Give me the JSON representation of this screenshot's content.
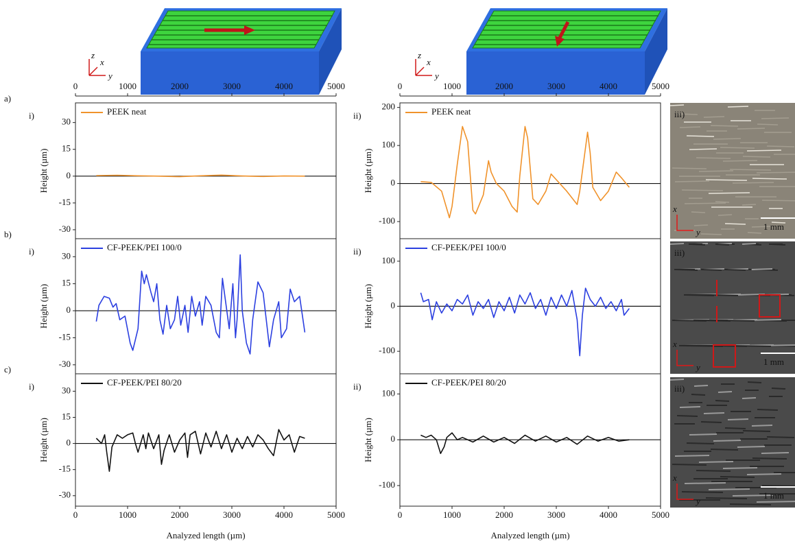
{
  "chart_data": [
    {
      "type": "line",
      "panel_label": "a)",
      "sub_label": "i)",
      "ylabel": "Height (µm)",
      "xaxis": "top",
      "xlim": [
        0,
        5000
      ],
      "xticks": [
        0,
        1000,
        2000,
        3000,
        4000,
        5000
      ],
      "ylim": [
        -35,
        41
      ],
      "yticks": [
        -30,
        -15,
        0,
        15,
        30
      ],
      "zero_line": true,
      "legend": "upper left",
      "series": [
        {
          "name": "PEEK neat",
          "color": "#f0922a",
          "x": [
            400,
            800,
            1200,
            1600,
            2000,
            2400,
            2800,
            3200,
            3600,
            4000,
            4400
          ],
          "values": [
            0.3,
            0.5,
            0.2,
            0,
            -0.3,
            0.2,
            0.6,
            0.1,
            -0.2,
            0.1,
            0
          ]
        }
      ]
    },
    {
      "type": "line",
      "sub_label": "ii)",
      "ylabel": "Height (µm)",
      "xaxis": "top",
      "xlim": [
        0,
        5000
      ],
      "xticks": [
        0,
        1000,
        2000,
        3000,
        4000,
        5000
      ],
      "ylim": [
        -145,
        212
      ],
      "yticks": [
        -100,
        0,
        100,
        200
      ],
      "zero_line": true,
      "legend": "upper left",
      "series": [
        {
          "name": "PEEK neat",
          "color": "#f0922a",
          "x": [
            400,
            600,
            800,
            950,
            1000,
            1100,
            1200,
            1300,
            1400,
            1450,
            1600,
            1700,
            1750,
            1850,
            2000,
            2150,
            2250,
            2300,
            2400,
            2450,
            2550,
            2650,
            2800,
            2900,
            3000,
            3200,
            3400,
            3450,
            3600,
            3650,
            3700,
            3850,
            4000,
            4150,
            4250,
            4400
          ],
          "values": [
            5,
            3,
            -20,
            -90,
            -60,
            50,
            150,
            110,
            -70,
            -80,
            -30,
            60,
            30,
            0,
            -20,
            -60,
            -75,
            20,
            150,
            120,
            -40,
            -55,
            -20,
            25,
            10,
            -20,
            -55,
            -20,
            135,
            80,
            -10,
            -45,
            -20,
            30,
            15,
            -10
          ]
        }
      ]
    },
    {
      "type": "line",
      "panel_label": "b)",
      "sub_label": "i)",
      "ylabel": "Height (µm)",
      "xlim": [
        0,
        5000
      ],
      "ylim": [
        -35,
        40
      ],
      "yticks": [
        -30,
        -15,
        0,
        15,
        30
      ],
      "zero_line": true,
      "legend": "upper left",
      "series": [
        {
          "name": "CF-PEEK/PEI 100/0",
          "color": "#2b3fe0",
          "x": [
            400,
            450,
            550,
            650,
            720,
            780,
            850,
            950,
            1050,
            1100,
            1200,
            1270,
            1320,
            1360,
            1450,
            1500,
            1560,
            1620,
            1680,
            1750,
            1820,
            1900,
            1960,
            2020,
            2100,
            2160,
            2230,
            2300,
            2380,
            2430,
            2500,
            2600,
            2700,
            2760,
            2820,
            2880,
            2950,
            3020,
            3070,
            3100,
            3160,
            3200,
            3280,
            3350,
            3400,
            3500,
            3600,
            3680,
            3720,
            3800,
            3900,
            3950,
            4050,
            4120,
            4200,
            4300,
            4400
          ],
          "values": [
            -6,
            3,
            8,
            7,
            2,
            4,
            -5,
            -3,
            -18,
            -22,
            -10,
            22,
            15,
            20,
            10,
            5,
            15,
            -5,
            -13,
            3,
            -10,
            -5,
            8,
            -8,
            3,
            -12,
            8,
            -3,
            5,
            -8,
            8,
            3,
            -12,
            -15,
            18,
            5,
            -10,
            15,
            -15,
            -5,
            31,
            0,
            -18,
            -24,
            -5,
            16,
            10,
            -10,
            -20,
            -5,
            5,
            -15,
            -10,
            12,
            5,
            8,
            -12
          ]
        }
      ]
    },
    {
      "type": "line",
      "sub_label": "ii)",
      "ylabel": "Height (µm)",
      "xlim": [
        0,
        5000
      ],
      "ylim": [
        -150,
        150
      ],
      "yticks": [
        -100,
        0,
        100
      ],
      "zero_line": true,
      "legend": "upper left",
      "series": [
        {
          "name": "CF-PEEK/PEI 100/0",
          "color": "#2b3fe0",
          "x": [
            400,
            450,
            550,
            620,
            700,
            800,
            900,
            1000,
            1100,
            1200,
            1300,
            1400,
            1500,
            1600,
            1700,
            1800,
            1900,
            2000,
            2100,
            2200,
            2300,
            2400,
            2500,
            2600,
            2700,
            2800,
            2900,
            3000,
            3100,
            3200,
            3300,
            3400,
            3450,
            3500,
            3560,
            3650,
            3750,
            3850,
            3950,
            4050,
            4150,
            4250,
            4300,
            4400
          ],
          "values": [
            30,
            10,
            15,
            -30,
            10,
            -15,
            5,
            -10,
            15,
            5,
            25,
            -20,
            10,
            -5,
            15,
            -25,
            10,
            -10,
            20,
            -15,
            25,
            5,
            30,
            -5,
            15,
            -20,
            20,
            -5,
            25,
            0,
            35,
            -30,
            -110,
            -20,
            40,
            15,
            0,
            20,
            -5,
            10,
            -10,
            15,
            -20,
            -5
          ]
        }
      ]
    },
    {
      "type": "line",
      "panel_label": "c)",
      "sub_label": "i)",
      "ylabel": "Height (µm)",
      "xlabel": "Analyzed length (µm)",
      "xaxis": "bottom",
      "xlim": [
        0,
        5000
      ],
      "xticks": [
        0,
        1000,
        2000,
        3000,
        4000,
        5000
      ],
      "ylim": [
        -36,
        40
      ],
      "yticks": [
        -30,
        -15,
        0,
        15,
        30
      ],
      "zero_line": true,
      "legend": "upper left",
      "series": [
        {
          "name": "CF-PEEK/PEI 80/20",
          "color": "#111111",
          "x": [
            400,
            500,
            560,
            600,
            650,
            700,
            800,
            900,
            1000,
            1100,
            1150,
            1200,
            1300,
            1350,
            1400,
            1500,
            1600,
            1650,
            1700,
            1800,
            1900,
            2000,
            2100,
            2150,
            2200,
            2300,
            2400,
            2500,
            2600,
            2700,
            2800,
            2900,
            3000,
            3100,
            3200,
            3300,
            3400,
            3500,
            3600,
            3700,
            3800,
            3900,
            4000,
            4100,
            4200,
            4300,
            4400
          ],
          "values": [
            3,
            0,
            5,
            -5,
            -16,
            -2,
            5,
            3,
            5,
            6,
            0,
            -5,
            5,
            -3,
            6,
            -3,
            5,
            -12,
            -4,
            5,
            -5,
            2,
            6,
            -8,
            5,
            7,
            -6,
            6,
            -2,
            7,
            -3,
            5,
            -5,
            3,
            -3,
            4,
            -2,
            5,
            2,
            -3,
            -7,
            8,
            2,
            5,
            -5,
            4,
            3
          ]
        }
      ]
    },
    {
      "type": "line",
      "sub_label": "ii)",
      "ylabel": "Height (µm)",
      "xlabel": "Analyzed length (µm)",
      "xaxis": "bottom",
      "xlim": [
        0,
        5000
      ],
      "xticks": [
        0,
        1000,
        2000,
        3000,
        4000,
        5000
      ],
      "ylim": [
        -145,
        144
      ],
      "yticks": [
        -100,
        0,
        100
      ],
      "zero_line": true,
      "legend": "upper left",
      "series": [
        {
          "name": "CF-PEEK/PEI 80/20",
          "color": "#111111",
          "x": [
            400,
            500,
            600,
            700,
            780,
            850,
            900,
            1000,
            1100,
            1200,
            1400,
            1600,
            1800,
            2000,
            2200,
            2400,
            2600,
            2800,
            3000,
            3200,
            3400,
            3600,
            3800,
            4000,
            4200,
            4400
          ],
          "values": [
            10,
            5,
            10,
            0,
            -30,
            -15,
            5,
            15,
            0,
            5,
            -5,
            8,
            -5,
            5,
            -8,
            10,
            -3,
            8,
            -5,
            5,
            -10,
            8,
            -3,
            5,
            -3,
            0
          ]
        }
      ]
    }
  ],
  "images": [
    {
      "label": "iii)",
      "scale": "1 mm",
      "axis_v": "x",
      "axis_h": "y"
    },
    {
      "label": "iii)",
      "scale": "1 mm",
      "axis_v": "x",
      "axis_h": "y"
    },
    {
      "label": "iii)",
      "scale": "1 mm",
      "axis_v": "x",
      "axis_h": "y"
    }
  ],
  "illustrations": [
    {
      "axes": [
        "z",
        "x",
        "y"
      ]
    },
    {
      "axes": [
        "z",
        "x",
        "y"
      ]
    }
  ]
}
